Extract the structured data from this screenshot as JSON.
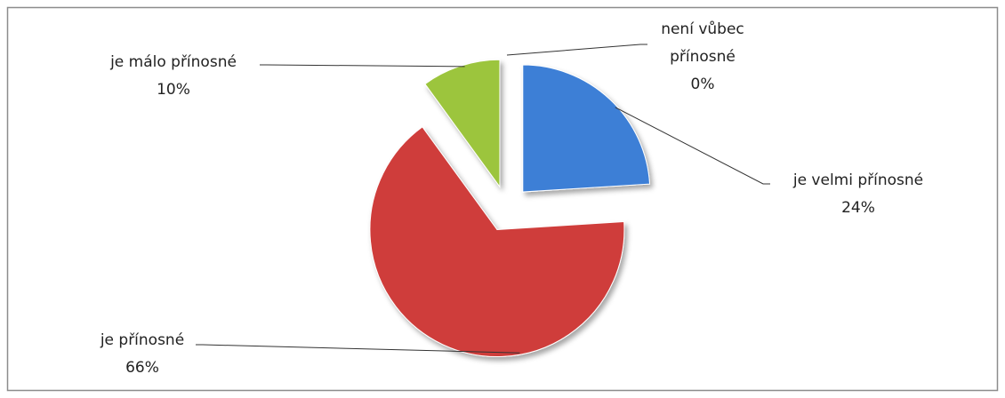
{
  "chart_data": {
    "type": "pie",
    "categories": [
      "je velmi přínosné",
      "je přínosné",
      "je málo přínosné",
      "není vůbec přínosné"
    ],
    "values": [
      24,
      66,
      10,
      0
    ],
    "value_labels": [
      "24%",
      "66%",
      "10%",
      "0%"
    ],
    "colors": [
      "#3c7fd6",
      "#cf3e3b",
      "#9cc53e",
      "#7f7fd0"
    ]
  }
}
